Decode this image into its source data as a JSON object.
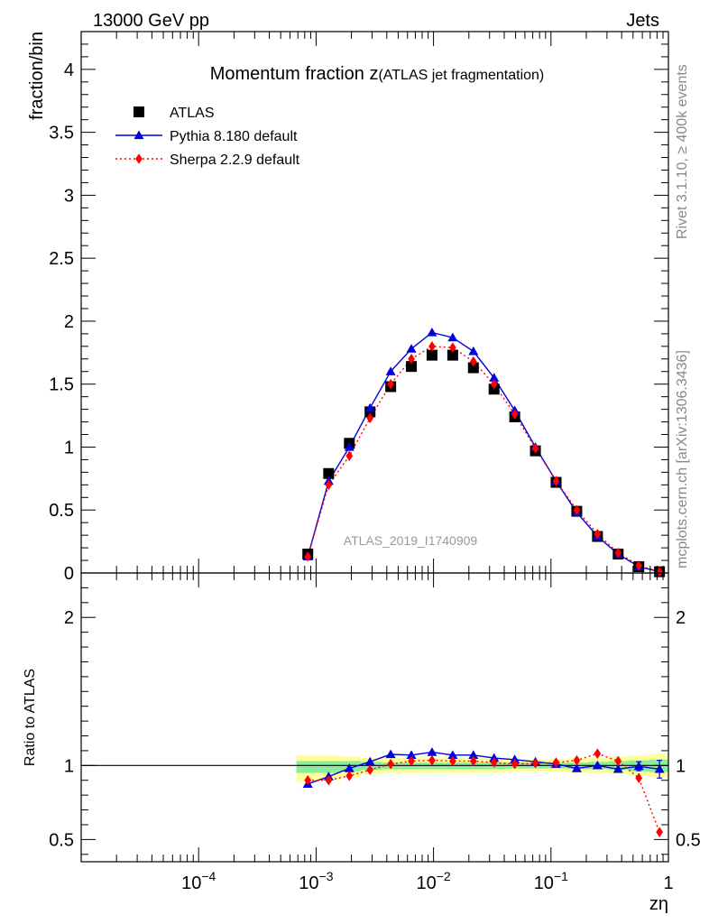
{
  "header": {
    "left": "13000 GeV pp",
    "right": "Jets"
  },
  "side_labels": {
    "rivet": "Rivet 3.1.10, ≥ 400k events",
    "mcplots": "mcplots.cern.ch [arXiv:1306.3436]"
  },
  "chart_data": {
    "type": "line",
    "title_main": "Momentum fraction z",
    "title_sub": "(ATLAS jet fragmentation)",
    "watermark": "ATLAS_2019_I1740909",
    "xlabel": "zη",
    "xscale": "log",
    "xlim": [
      1e-05,
      1
    ],
    "x_ticks": [
      {
        "v": 0.0001,
        "base": "10",
        "exp": "−4"
      },
      {
        "v": 0.001,
        "base": "10",
        "exp": "−3"
      },
      {
        "v": 0.01,
        "base": "10",
        "exp": "−2"
      },
      {
        "v": 0.1,
        "base": "10",
        "exp": "−1"
      },
      {
        "v": 1,
        "base": "1",
        "exp": ""
      }
    ],
    "main": {
      "ylabel": "fraction/bin",
      "ylim": [
        0,
        4.3
      ],
      "y_ticks": [
        {
          "v": 0,
          "label": "0"
        },
        {
          "v": 0.5,
          "label": "0.5"
        },
        {
          "v": 1,
          "label": "1"
        },
        {
          "v": 1.5,
          "label": "1.5"
        },
        {
          "v": 2,
          "label": "2"
        },
        {
          "v": 2.5,
          "label": "2.5"
        },
        {
          "v": 3,
          "label": "3"
        },
        {
          "v": 3.5,
          "label": "3.5"
        },
        {
          "v": 4,
          "label": "4"
        }
      ]
    },
    "ratio": {
      "ylabel": "Ratio to ATLAS",
      "ylim": [
        0.35,
        2.3
      ],
      "y_ticks": [
        {
          "v": 0.5,
          "label": "0.5"
        },
        {
          "v": 1,
          "label": "1"
        },
        {
          "v": 2,
          "label": "2"
        }
      ],
      "band_outer": [
        {
          "x0": 0.00068,
          "x1": 0.00105,
          "lo": 0.89,
          "hi": 1.07
        },
        {
          "x0": 0.00105,
          "x1": 0.0016,
          "lo": 0.9,
          "hi": 1.07
        },
        {
          "x0": 0.0016,
          "x1": 0.0024,
          "lo": 0.92,
          "hi": 1.06
        },
        {
          "x0": 0.0024,
          "x1": 0.0036,
          "lo": 0.94,
          "hi": 1.05
        },
        {
          "x0": 0.0036,
          "x1": 0.0054,
          "lo": 0.95,
          "hi": 1.05
        },
        {
          "x0": 0.0054,
          "x1": 0.0081,
          "lo": 0.95,
          "hi": 1.05
        },
        {
          "x0": 0.0081,
          "x1": 0.0121,
          "lo": 0.95,
          "hi": 1.05
        },
        {
          "x0": 0.0121,
          "x1": 0.0182,
          "lo": 0.95,
          "hi": 1.05
        },
        {
          "x0": 0.0182,
          "x1": 0.0273,
          "lo": 0.95,
          "hi": 1.05
        },
        {
          "x0": 0.0273,
          "x1": 0.041,
          "lo": 0.95,
          "hi": 1.05
        },
        {
          "x0": 0.041,
          "x1": 0.061,
          "lo": 0.96,
          "hi": 1.04
        },
        {
          "x0": 0.061,
          "x1": 0.092,
          "lo": 0.96,
          "hi": 1.04
        },
        {
          "x0": 0.092,
          "x1": 0.138,
          "lo": 0.96,
          "hi": 1.04
        },
        {
          "x0": 0.138,
          "x1": 0.207,
          "lo": 0.95,
          "hi": 1.05
        },
        {
          "x0": 0.207,
          "x1": 0.31,
          "lo": 0.95,
          "hi": 1.05
        },
        {
          "x0": 0.31,
          "x1": 0.46,
          "lo": 0.94,
          "hi": 1.06
        },
        {
          "x0": 0.46,
          "x1": 0.69,
          "lo": 0.93,
          "hi": 1.07
        },
        {
          "x0": 0.69,
          "x1": 1.0,
          "lo": 0.92,
          "hi": 1.08
        }
      ],
      "band_inner": [
        {
          "x0": 0.00068,
          "x1": 0.00105,
          "lo": 0.95,
          "hi": 1.03
        },
        {
          "x0": 0.00105,
          "x1": 0.0016,
          "lo": 0.95,
          "hi": 1.03
        },
        {
          "x0": 0.0016,
          "x1": 0.0024,
          "lo": 0.96,
          "hi": 1.03
        },
        {
          "x0": 0.0024,
          "x1": 0.0036,
          "lo": 0.97,
          "hi": 1.025
        },
        {
          "x0": 0.0036,
          "x1": 0.0054,
          "lo": 0.975,
          "hi": 1.02
        },
        {
          "x0": 0.0054,
          "x1": 0.0081,
          "lo": 0.975,
          "hi": 1.02
        },
        {
          "x0": 0.0081,
          "x1": 0.0121,
          "lo": 0.975,
          "hi": 1.02
        },
        {
          "x0": 0.0121,
          "x1": 0.0182,
          "lo": 0.975,
          "hi": 1.02
        },
        {
          "x0": 0.0182,
          "x1": 0.0273,
          "lo": 0.975,
          "hi": 1.02
        },
        {
          "x0": 0.0273,
          "x1": 0.041,
          "lo": 0.975,
          "hi": 1.02
        },
        {
          "x0": 0.041,
          "x1": 0.061,
          "lo": 0.98,
          "hi": 1.02
        },
        {
          "x0": 0.061,
          "x1": 0.092,
          "lo": 0.98,
          "hi": 1.02
        },
        {
          "x0": 0.092,
          "x1": 0.138,
          "lo": 0.98,
          "hi": 1.02
        },
        {
          "x0": 0.138,
          "x1": 0.207,
          "lo": 0.975,
          "hi": 1.02
        },
        {
          "x0": 0.207,
          "x1": 0.31,
          "lo": 0.975,
          "hi": 1.025
        },
        {
          "x0": 0.31,
          "x1": 0.46,
          "lo": 0.97,
          "hi": 1.03
        },
        {
          "x0": 0.46,
          "x1": 0.69,
          "lo": 0.96,
          "hi": 1.035
        },
        {
          "x0": 0.69,
          "x1": 1.0,
          "lo": 0.955,
          "hi": 1.04
        }
      ]
    },
    "x": [
      0.00085,
      0.00128,
      0.00192,
      0.00288,
      0.00432,
      0.00648,
      0.00971,
      0.01457,
      0.02185,
      0.03277,
      0.04916,
      0.07374,
      0.11061,
      0.16591,
      0.24887,
      0.3733,
      0.55996,
      0.83994
    ],
    "series": [
      {
        "name": "ATLAS",
        "color": "#000000",
        "marker": "square",
        "line": "none",
        "values": [
          0.15,
          0.79,
          1.03,
          1.28,
          1.48,
          1.64,
          1.73,
          1.73,
          1.63,
          1.46,
          1.24,
          0.97,
          0.72,
          0.49,
          0.29,
          0.15,
          0.05,
          0.01
        ],
        "ratio": [
          1,
          1,
          1,
          1,
          1,
          1,
          1,
          1,
          1,
          1,
          1,
          1,
          1,
          1,
          1,
          1,
          1,
          1
        ]
      },
      {
        "name": "Pythia 8.180 default",
        "color": "#0000dd",
        "marker": "triangle",
        "line": "solid",
        "values": [
          0.13,
          0.73,
          1.0,
          1.31,
          1.6,
          1.78,
          1.91,
          1.87,
          1.76,
          1.55,
          1.29,
          1.0,
          0.73,
          0.48,
          0.29,
          0.15,
          0.05,
          0.01
        ],
        "ratio": [
          0.875,
          0.925,
          0.98,
          1.025,
          1.075,
          1.07,
          1.09,
          1.07,
          1.07,
          1.05,
          1.04,
          1.025,
          1.01,
          0.98,
          1.0,
          0.975,
          0.995,
          0.975
        ]
      },
      {
        "name": "Sherpa 2.2.9 default",
        "color": "#ff0000",
        "marker": "diamond",
        "line": "dotted",
        "values": [
          0.13,
          0.7,
          0.93,
          1.23,
          1.5,
          1.7,
          1.8,
          1.79,
          1.68,
          1.5,
          1.26,
          0.99,
          0.73,
          0.5,
          0.31,
          0.16,
          0.06,
          0.01
        ],
        "ratio": [
          0.9,
          0.9,
          0.93,
          0.97,
          1.01,
          1.03,
          1.035,
          1.03,
          1.03,
          1.02,
          1.01,
          1.015,
          1.02,
          1.035,
          1.08,
          1.03,
          0.915,
          0.55
        ]
      }
    ]
  }
}
